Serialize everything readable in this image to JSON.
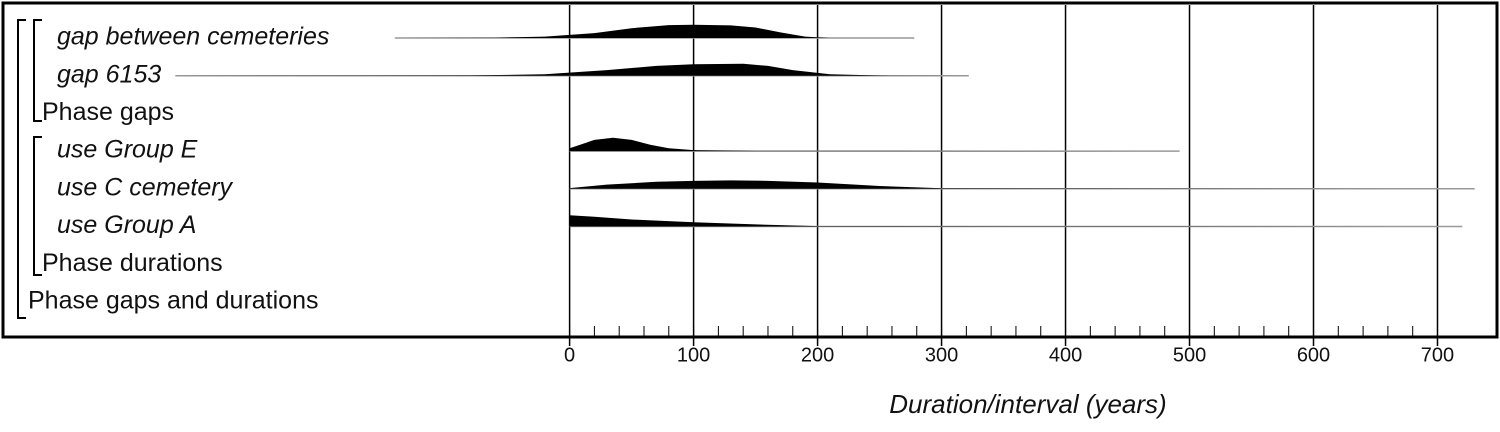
{
  "chart_data": {
    "type": "multiplot",
    "x_label": "Duration/interval (years)",
    "xlim": [
      -457,
      748
    ],
    "xticks": [
      0,
      100,
      200,
      300,
      400,
      500,
      600,
      700
    ],
    "minor_tick_step": 20,
    "color": "#000000",
    "line_color": "#999999",
    "rows": [
      {
        "label": "gap between cemeteries",
        "italic": true,
        "indent": 2,
        "range": [
          -141,
          278
        ],
        "x": [
          -140,
          -60,
          -20,
          20,
          50,
          80,
          100,
          130,
          150,
          170,
          190,
          210,
          278
        ],
        "density": [
          0,
          0.02,
          0.1,
          0.35,
          0.7,
          0.92,
          0.95,
          0.9,
          0.75,
          0.4,
          0.1,
          0,
          0
        ]
      },
      {
        "label": "gap 6153",
        "italic": true,
        "indent": 2,
        "range": [
          -318,
          322
        ],
        "x": [
          -318,
          -80,
          -20,
          30,
          70,
          100,
          140,
          160,
          180,
          210,
          250,
          322
        ],
        "density": [
          0,
          0.02,
          0.1,
          0.4,
          0.7,
          0.82,
          0.85,
          0.7,
          0.4,
          0.1,
          0.01,
          0
        ]
      },
      {
        "label": "Phase gaps",
        "italic": false,
        "indent": 1
      },
      {
        "label": "use Group E",
        "italic": true,
        "indent": 2,
        "range": [
          0,
          492
        ],
        "x": [
          0,
          10,
          20,
          35,
          50,
          65,
          80,
          100,
          150,
          492
        ],
        "density": [
          0.2,
          0.5,
          0.8,
          0.95,
          0.8,
          0.45,
          0.2,
          0.07,
          0.02,
          0
        ]
      },
      {
        "label": "use C cemetery",
        "italic": true,
        "indent": 2,
        "range": [
          0,
          730
        ],
        "x": [
          0,
          30,
          70,
          100,
          130,
          160,
          200,
          250,
          300,
          730
        ],
        "density": [
          0.05,
          0.3,
          0.5,
          0.57,
          0.6,
          0.57,
          0.45,
          0.2,
          0.04,
          0
        ]
      },
      {
        "label": "use Group A",
        "italic": true,
        "indent": 2,
        "range": [
          0,
          720
        ],
        "x": [
          0,
          20,
          50,
          100,
          150,
          200,
          720
        ],
        "density": [
          0.8,
          0.7,
          0.5,
          0.3,
          0.15,
          0.03,
          0
        ]
      },
      {
        "label": "Phase durations",
        "italic": false,
        "indent": 1
      },
      {
        "label": "Phase gaps and durations",
        "italic": false,
        "indent": 0
      }
    ]
  }
}
